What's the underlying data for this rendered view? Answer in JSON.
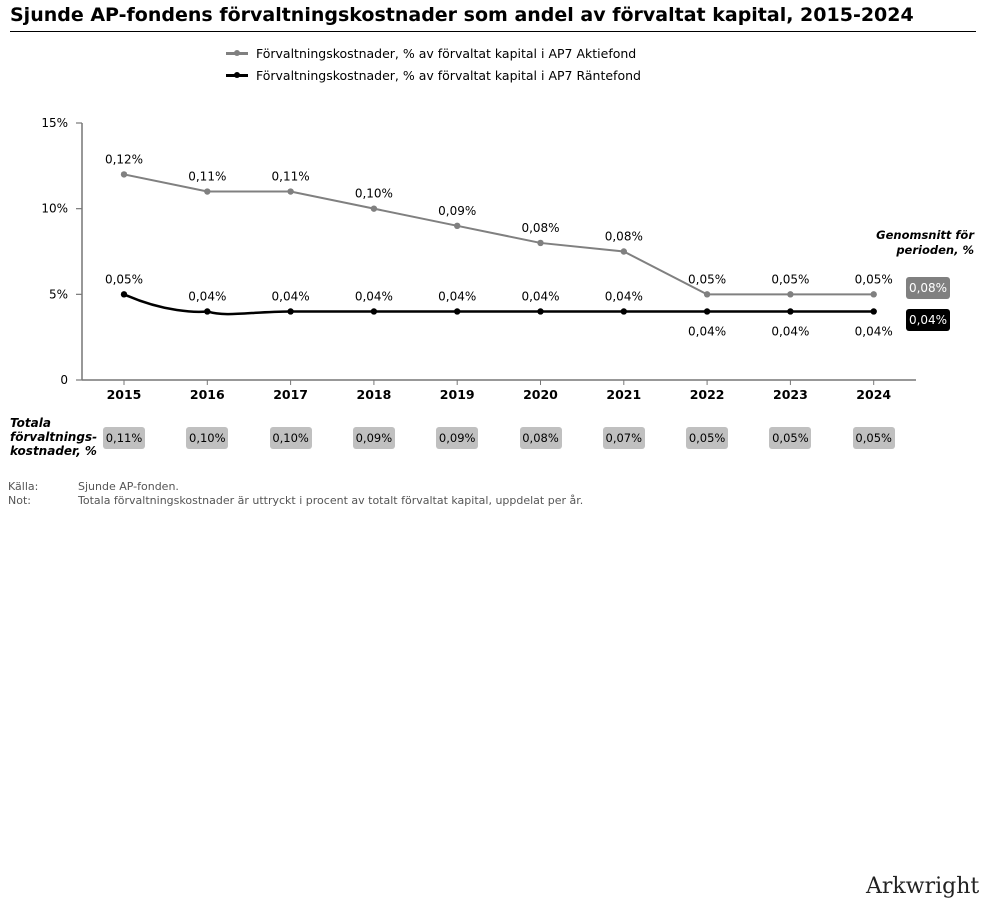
{
  "title": "Sjunde AP-fondens förvaltningskostnader som andel av förvaltat kapital, 2015-2024",
  "legend": [
    {
      "label": "Förvaltningskostnader, % av förvaltat kapital i AP7 Aktiefond",
      "color": "#808080"
    },
    {
      "label": "Förvaltningskostnader, % av förvaltat kapital i AP7 Räntefond",
      "color": "#000000"
    }
  ],
  "chart_data": {
    "type": "line",
    "title": "Sjunde AP-fondens förvaltningskostnader som andel av förvaltat kapital, 2015-2024",
    "x": [
      "2015",
      "2016",
      "2017",
      "2018",
      "2019",
      "2020",
      "2021",
      "2022",
      "2023",
      "2024"
    ],
    "y_ticks": [
      0,
      5,
      10,
      15
    ],
    "y_tick_labels": [
      "0",
      "5%",
      "10%",
      "15%"
    ],
    "ylim": [
      0,
      15
    ],
    "grid": false,
    "series": [
      {
        "name": "Förvaltningskostnader, % av förvaltat kapital i AP7 Aktiefond",
        "color": "#808080",
        "values": [
          12,
          11,
          11,
          10,
          9,
          8,
          7.5,
          5,
          5,
          5
        ],
        "labels": [
          "0,12%",
          "0,11%",
          "0,11%",
          "0,10%",
          "0,09%",
          "0,08%",
          "0,08%",
          "0,05%",
          "0,05%",
          "0,05%"
        ],
        "label_position": [
          "above",
          "above",
          "above",
          "above",
          "above",
          "above",
          "above",
          "above",
          "above",
          "above"
        ]
      },
      {
        "name": "Förvaltningskostnader, % av förvaltat kapital i AP7 Räntefond",
        "color": "#000000",
        "values": [
          5,
          4,
          4,
          4,
          4,
          4,
          4,
          4,
          4,
          4
        ],
        "labels": [
          "0,05%",
          "0,04%",
          "0,04%",
          "0,04%",
          "0,04%",
          "0,04%",
          "0,04%",
          "0,04%",
          "0,04%",
          "0,04%"
        ],
        "label_position": [
          "above",
          "above",
          "above",
          "above",
          "above",
          "above",
          "above",
          "below",
          "below",
          "below"
        ]
      }
    ],
    "averages": {
      "title": "Genomsnitt för perioden, %",
      "values": [
        {
          "label": "0,08%",
          "color": "#808080"
        },
        {
          "label": "0,04%",
          "color": "#000000"
        }
      ]
    },
    "totals": {
      "label_lines": [
        "Totala",
        "förvaltnings-",
        "kostnader, %"
      ],
      "values": [
        "0,11%",
        "0,10%",
        "0,10%",
        "0,09%",
        "0,09%",
        "0,08%",
        "0,07%",
        "0,05%",
        "0,05%",
        "0,05%"
      ]
    }
  },
  "notes": [
    {
      "key": "Källa:",
      "text": "Sjunde AP-fonden."
    },
    {
      "key": "Not:",
      "text": "Totala förvaltningskostnader är uttryckt i procent av totalt förvaltat kapital, uppdelat per år."
    }
  ],
  "logo": "Arkwright"
}
